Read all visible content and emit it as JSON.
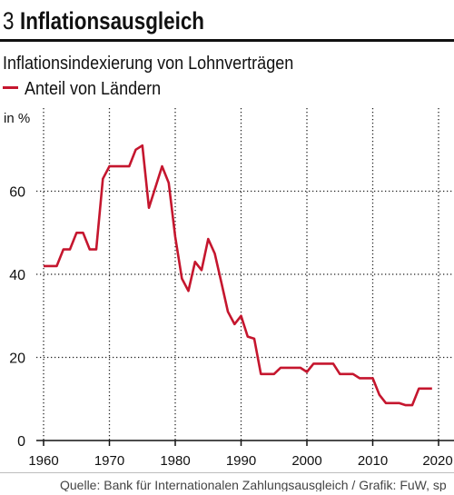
{
  "figure_number": "3",
  "source": "Quelle: Bank für Internationalen Zahlungsausgleich / Grafik: FuW, sp",
  "chart_data": {
    "type": "line",
    "title": "Inflationsausgleich",
    "subtitle": "Inflationsindexierung von Lohnverträgen",
    "ylabel": "in %",
    "xlim": [
      1960,
      2020
    ],
    "ylim": [
      0,
      80
    ],
    "x_ticks": [
      1960,
      1970,
      1980,
      1990,
      2000,
      2010,
      2020
    ],
    "y_ticks": [
      0,
      20,
      40,
      60
    ],
    "grid": true,
    "legend_position": "top-left",
    "series": [
      {
        "name": "Anteil von Ländern",
        "color": "#c5162e",
        "x": [
          1960,
          1961,
          1962,
          1963,
          1964,
          1965,
          1966,
          1967,
          1968,
          1969,
          1970,
          1971,
          1972,
          1973,
          1974,
          1975,
          1976,
          1977,
          1978,
          1979,
          1980,
          1981,
          1982,
          1983,
          1984,
          1985,
          1986,
          1987,
          1988,
          1989,
          1990,
          1991,
          1992,
          1993,
          1994,
          1995,
          1996,
          1997,
          1998,
          1999,
          2000,
          2001,
          2002,
          2003,
          2004,
          2005,
          2006,
          2007,
          2008,
          2009,
          2010,
          2011,
          2012,
          2013,
          2014,
          2015,
          2016,
          2017,
          2018,
          2019
        ],
        "y": [
          42,
          42,
          42,
          46,
          46,
          50,
          50,
          46,
          46,
          63,
          66,
          66,
          66,
          66,
          70,
          71,
          56,
          61,
          66,
          62,
          49,
          39,
          36,
          43,
          41,
          48.5,
          45,
          38,
          31,
          28,
          30,
          25,
          24.5,
          16,
          16,
          16,
          17.5,
          17.5,
          17.5,
          17.5,
          16.5,
          18.5,
          18.5,
          18.5,
          18.5,
          16,
          16,
          16,
          15,
          15,
          15,
          11,
          9,
          9,
          9,
          8.5,
          8.5,
          12.5,
          12.5,
          12.5
        ]
      }
    ]
  }
}
